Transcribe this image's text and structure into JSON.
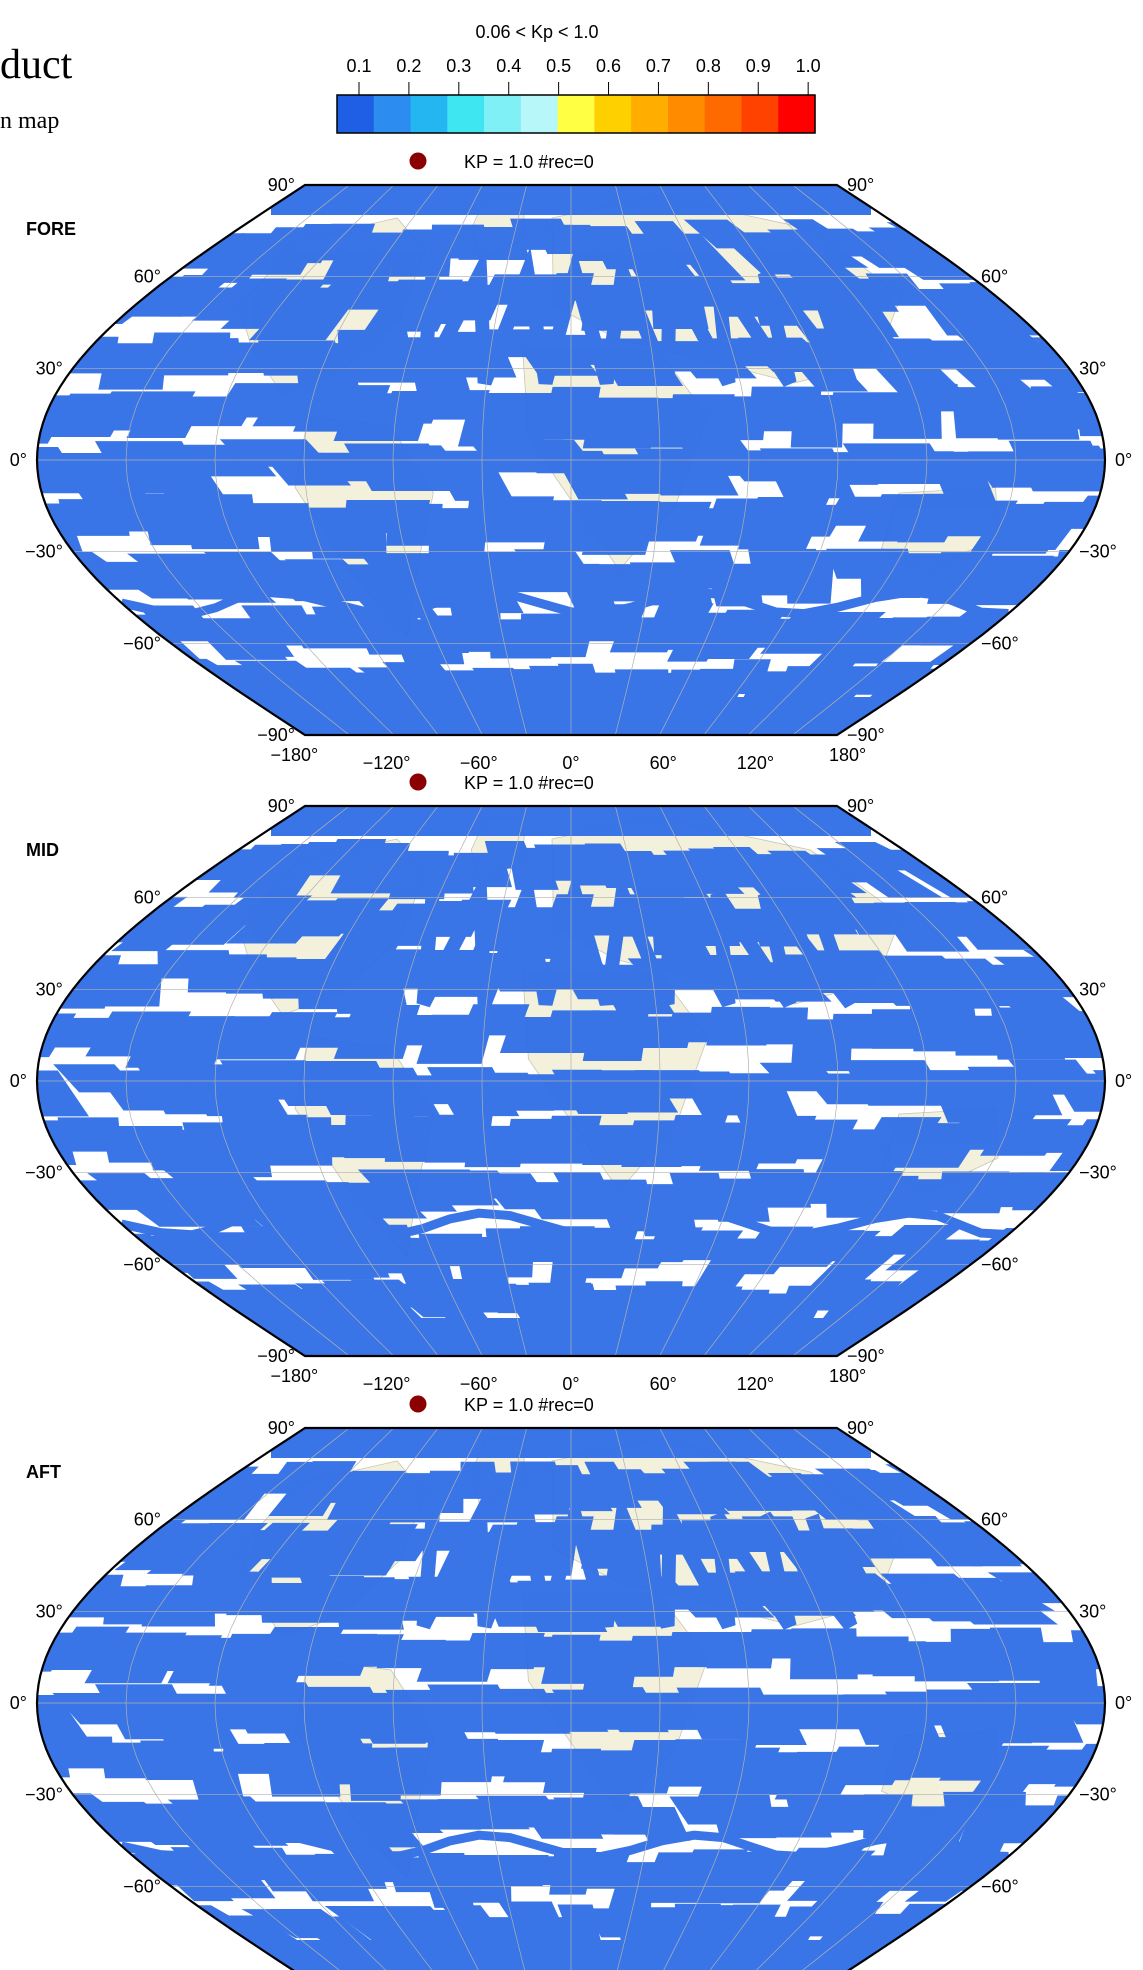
{
  "header": {
    "title_fragment": "duct",
    "subtitle_fragment": "n map"
  },
  "colorbar": {
    "title": "0.06 < Kp < 1.0",
    "ticks": [
      "0.1",
      "0.2",
      "0.3",
      "0.4",
      "0.5",
      "0.6",
      "0.7",
      "0.8",
      "0.9",
      "1.0"
    ],
    "colors": [
      "#1f5fe6",
      "#2c8cf0",
      "#23b6f0",
      "#3ee6f2",
      "#7ff0f6",
      "#b7f6f9",
      "#ffff44",
      "#ffd000",
      "#ffae00",
      "#ff8c00",
      "#ff6a00",
      "#ff4200",
      "#ff0000"
    ]
  },
  "panels": [
    {
      "name": "FORE",
      "legend": "KP = 1.0 #rec=0"
    },
    {
      "name": "MID",
      "legend": "KP = 1.0 #rec=0"
    },
    {
      "name": "AFT",
      "legend": "KP = 1.0 #rec=0"
    }
  ],
  "axes": {
    "lat_labels": [
      "90°",
      "60°",
      "30°",
      "0°",
      "−30°",
      "−60°",
      "−90°"
    ],
    "lon_labels": [
      "−180°",
      "−120°",
      "−60°",
      "0°",
      "60°",
      "120°",
      "180°"
    ]
  },
  "style": {
    "swath_color": "#2f6ee6",
    "land_color": "#f3f1dc",
    "legend_dot_color": "#8b0000",
    "grid_color": "#b0b0b0"
  }
}
